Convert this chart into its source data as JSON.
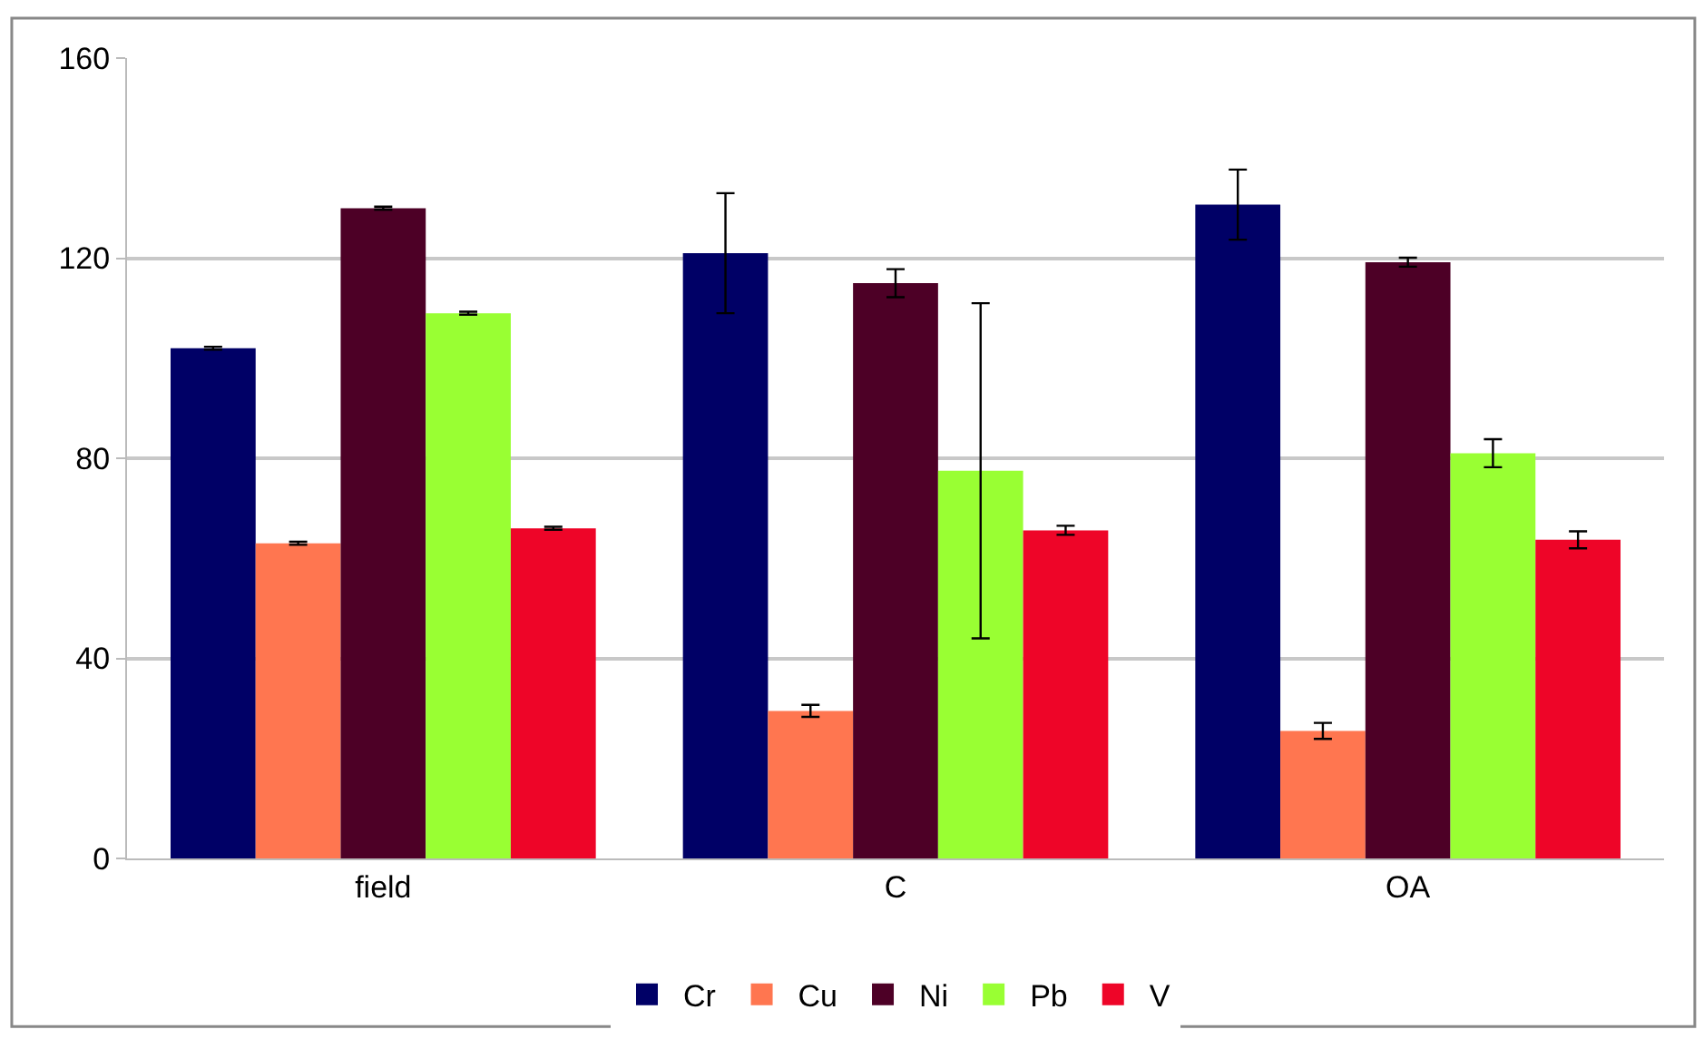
{
  "chart_data": {
    "type": "bar",
    "categories": [
      "field",
      "C",
      "OA"
    ],
    "series": [
      {
        "name": "Cr",
        "color": "#000066",
        "values": [
          102,
          121,
          130.7
        ],
        "errors": [
          0.3,
          12,
          7
        ]
      },
      {
        "name": "Cu",
        "color": "#ff7650",
        "values": [
          63,
          29.5,
          25.5
        ],
        "errors": [
          0.3,
          1.2,
          1.6
        ]
      },
      {
        "name": "Ni",
        "color": "#4d0026",
        "values": [
          130,
          115,
          119.2
        ],
        "errors": [
          0.3,
          2.8,
          0.9
        ]
      },
      {
        "name": "Pb",
        "color": "#99ff33",
        "values": [
          109,
          77.5,
          81
        ],
        "errors": [
          0.3,
          33.5,
          2.8
        ]
      },
      {
        "name": "V",
        "color": "#ee0528",
        "values": [
          66,
          65.6,
          63.7
        ],
        "errors": [
          0.3,
          0.9,
          1.7
        ]
      }
    ],
    "ylim": [
      0,
      160
    ],
    "yticks": [
      0,
      40,
      80,
      120,
      160
    ],
    "grid": "y",
    "legend": "bottom"
  }
}
